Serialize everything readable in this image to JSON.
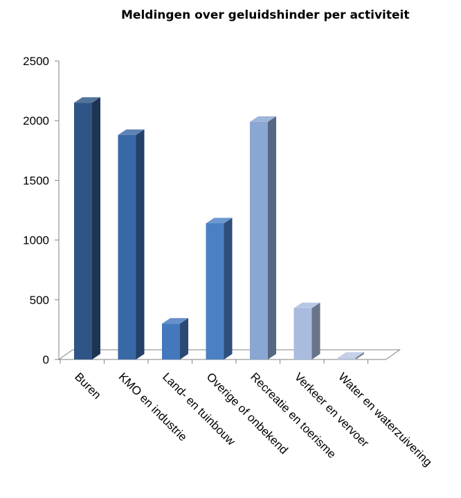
{
  "chart_data": {
    "type": "bar",
    "title": "Meldingen over geluidshinder per activiteit",
    "xlabel": "",
    "ylabel": "",
    "ylim": [
      0,
      2500
    ],
    "yticks": [
      0,
      500,
      1000,
      1500,
      2000,
      2500
    ],
    "grid": false,
    "legend": "none",
    "categories": [
      "Buren",
      "KMO en industrie",
      "Land- en tuinbouw",
      "Overige of onbekend",
      "Recreatie en toerisme",
      "Verkeer en vervoer",
      "Water en waterzuivering"
    ],
    "values": [
      2150,
      1880,
      300,
      1140,
      1990,
      430,
      15
    ],
    "colors": [
      "#2e5586",
      "#3968a7",
      "#4378bd",
      "#4c80c4",
      "#8aa6d3",
      "#a9bbde",
      "#b9c7e3"
    ]
  }
}
